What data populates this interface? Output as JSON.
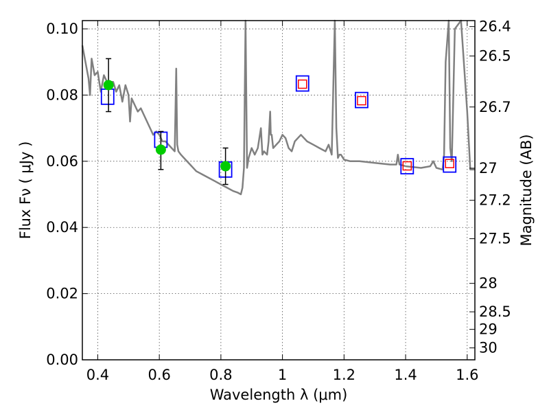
{
  "chart_data": {
    "type": "line",
    "title": "",
    "xlabel": "Wavelength  λ (μm)",
    "ylabel_left": "Flux  Fν  ( μJy )",
    "ylabel_right": "Magnitude (AB)",
    "xlim": [
      0.35,
      1.625
    ],
    "ylim": [
      0.0,
      0.1025
    ],
    "grid": true,
    "legend": "none",
    "x_ticks": [
      0.4,
      0.6,
      0.8,
      1.0,
      1.2,
      1.4,
      1.6
    ],
    "x_tick_labels": [
      "0.4",
      "0.6",
      "0.8",
      "1",
      "1.2",
      "1.4",
      "1.6"
    ],
    "y_ticks": [
      0.0,
      0.02,
      0.04,
      0.06,
      0.08,
      0.1
    ],
    "y_tick_labels": [
      "0.00",
      "0.02",
      "0.04",
      "0.06",
      "0.08",
      "0.10"
    ],
    "right_ticks": [
      {
        "label": "26.4",
        "flux": 0.1007
      },
      {
        "label": "26.5",
        "flux": 0.0918
      },
      {
        "label": "26.7",
        "flux": 0.0764
      },
      {
        "label": "27",
        "flux": 0.0579
      },
      {
        "label": "27.2",
        "flux": 0.0482
      },
      {
        "label": "27.5",
        "flux": 0.0366
      },
      {
        "label": "28",
        "flux": 0.0231
      },
      {
        "label": "28.5",
        "flux": 0.0145
      },
      {
        "label": "29",
        "flux": 0.0092
      },
      {
        "label": "30",
        "flux": 0.0036
      }
    ],
    "series": [
      {
        "kind": "model_spectrum",
        "color": "#808080",
        "x": [
          0.35,
          0.36,
          0.37,
          0.375,
          0.38,
          0.39,
          0.4,
          0.41,
          0.42,
          0.43,
          0.44,
          0.45,
          0.46,
          0.47,
          0.48,
          0.49,
          0.5,
          0.505,
          0.51,
          0.52,
          0.53,
          0.54,
          0.55,
          0.56,
          0.57,
          0.58,
          0.59,
          0.6,
          0.61,
          0.62,
          0.63,
          0.64,
          0.65,
          0.655,
          0.658,
          0.662,
          0.67,
          0.68,
          0.7,
          0.72,
          0.74,
          0.76,
          0.78,
          0.8,
          0.82,
          0.84,
          0.855,
          0.865,
          0.87,
          0.875,
          0.88,
          0.885,
          0.89,
          0.9,
          0.91,
          0.92,
          0.93,
          0.935,
          0.94,
          0.95,
          0.955,
          0.96,
          0.962,
          0.965,
          0.97,
          0.98,
          0.99,
          1.0,
          1.01,
          1.02,
          1.03,
          1.04,
          1.06,
          1.08,
          1.1,
          1.12,
          1.14,
          1.15,
          1.16,
          1.17,
          1.175,
          1.18,
          1.185,
          1.19,
          1.2,
          1.22,
          1.25,
          1.3,
          1.35,
          1.37,
          1.375,
          1.38,
          1.4,
          1.45,
          1.48,
          1.49,
          1.5,
          1.52,
          1.525,
          1.53,
          1.54,
          1.545,
          1.55,
          1.56,
          1.58,
          1.6,
          1.61,
          1.625
        ],
        "y": [
          0.095,
          0.09,
          0.085,
          0.08,
          0.091,
          0.086,
          0.087,
          0.081,
          0.086,
          0.084,
          0.084,
          0.084,
          0.081,
          0.083,
          0.078,
          0.083,
          0.08,
          0.072,
          0.079,
          0.077,
          0.075,
          0.076,
          0.074,
          0.072,
          0.07,
          0.068,
          0.069,
          0.068,
          0.066,
          0.066,
          0.065,
          0.064,
          0.063,
          0.088,
          0.065,
          0.063,
          0.062,
          0.061,
          0.059,
          0.057,
          0.056,
          0.055,
          0.054,
          0.053,
          0.052,
          0.051,
          0.0505,
          0.05,
          0.052,
          0.058,
          0.11,
          0.058,
          0.061,
          0.064,
          0.062,
          0.064,
          0.07,
          0.062,
          0.063,
          0.062,
          0.066,
          0.075,
          0.068,
          0.068,
          0.064,
          0.065,
          0.066,
          0.068,
          0.067,
          0.064,
          0.063,
          0.066,
          0.068,
          0.066,
          0.065,
          0.064,
          0.063,
          0.065,
          0.062,
          0.11,
          0.07,
          0.061,
          0.062,
          0.062,
          0.0605,
          0.06,
          0.06,
          0.0595,
          0.059,
          0.059,
          0.062,
          0.059,
          0.0585,
          0.058,
          0.0585,
          0.06,
          0.058,
          0.0575,
          0.062,
          0.09,
          0.11,
          0.064,
          0.06,
          0.1,
          0.11,
          0.075,
          0.0575,
          0.0575
        ]
      },
      {
        "kind": "model_photometry_blue",
        "color": "#0000ff",
        "x": [
          0.432,
          0.605,
          0.815,
          1.065,
          1.257,
          1.405,
          1.543
        ],
        "y": [
          0.0795,
          0.0665,
          0.0575,
          0.0835,
          0.0785,
          0.0585,
          0.059
        ]
      },
      {
        "kind": "model_photometry_red",
        "color": "#ff0000",
        "x": [
          1.065,
          1.257,
          1.405,
          1.543
        ],
        "y": [
          0.0833,
          0.0783,
          0.0586,
          0.0593
        ]
      },
      {
        "kind": "observed_flux",
        "color": "#00cc00",
        "x": [
          0.435,
          0.605,
          0.815
        ],
        "y": [
          0.083,
          0.0635,
          0.0585
        ],
        "err_low": [
          0.075,
          0.0575,
          0.053
        ],
        "err_high": [
          0.091,
          0.069,
          0.064
        ]
      }
    ]
  }
}
